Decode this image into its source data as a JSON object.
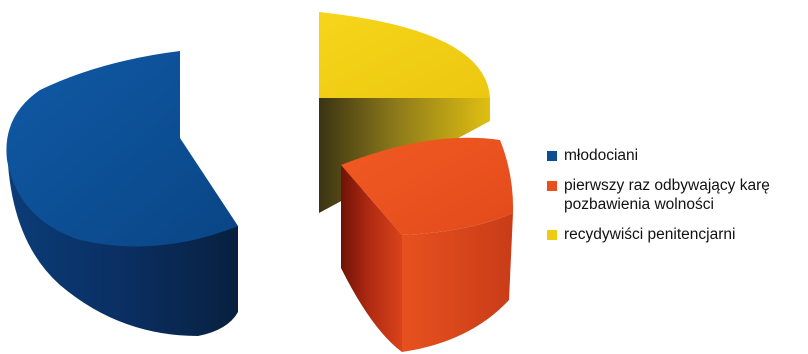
{
  "chart_data": {
    "type": "pie",
    "style": "3d-exploded",
    "legend_position": "right",
    "series": [
      {
        "name": "młodociani",
        "value": 55,
        "color": "#0d4d92"
      },
      {
        "name": "pierwszy raz odbywający karę pozbawienia wolności",
        "value": 25,
        "color": "#e8501e"
      },
      {
        "name": "recydywiści penitencjarni",
        "value": 20,
        "color": "#f0cc10"
      }
    ],
    "legend": [
      {
        "lines": [
          "młodociani"
        ],
        "color": "#0d4d92"
      },
      {
        "lines": [
          "pierwszy raz odbywający karę",
          "pozbawienia wolności"
        ],
        "color": "#e8501e"
      },
      {
        "lines": [
          "recydywiści penitencjarni"
        ],
        "color": "#f0cc10"
      }
    ]
  }
}
